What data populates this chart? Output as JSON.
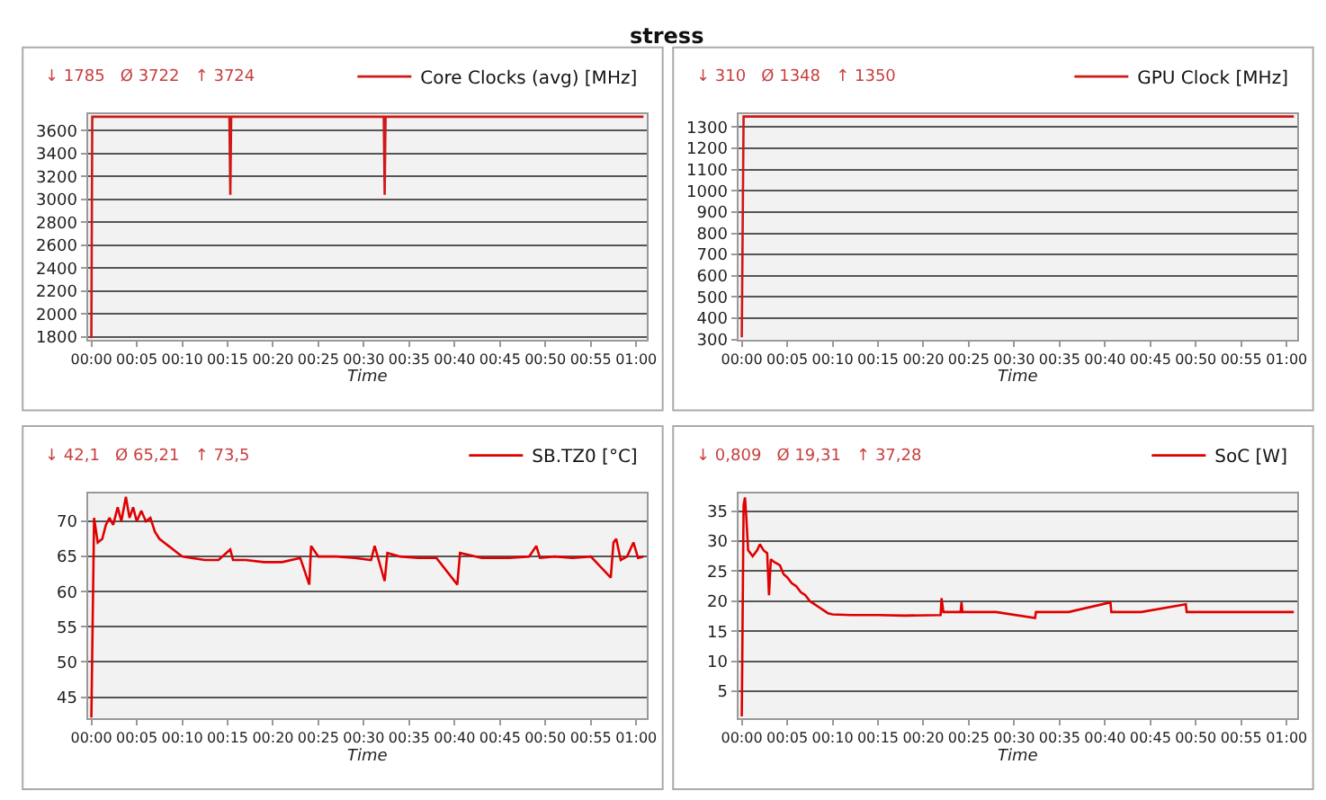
{
  "chart_data": [
    {
      "type": "line",
      "title": "stress",
      "xlabel": "Time",
      "legend": "top right",
      "grid": "y",
      "marker": "none",
      "line_style": "solid",
      "annotations": [
        "↓ 1785   Ø 3722   ↑ 3724"
      ],
      "xlim": [
        -0.4,
        61.2
      ],
      "ylim": [
        1780,
        3740
      ],
      "yticks": [
        1800,
        2000,
        2200,
        2400,
        2600,
        2800,
        3000,
        3200,
        3400,
        3600
      ],
      "xticks": [
        {
          "value": 0,
          "label": "00:00"
        },
        {
          "value": 5,
          "label": "00:05"
        },
        {
          "value": 10,
          "label": "00:10"
        },
        {
          "value": 15,
          "label": "00:15"
        },
        {
          "value": 20,
          "label": "00:20"
        },
        {
          "value": 25,
          "label": "00:25"
        },
        {
          "value": 30,
          "label": "00:30"
        },
        {
          "value": 35,
          "label": "00:35"
        },
        {
          "value": 40,
          "label": "00:40"
        },
        {
          "value": 45,
          "label": "00:45"
        },
        {
          "value": 50,
          "label": "00:50"
        },
        {
          "value": 55,
          "label": "00:55"
        },
        {
          "value": 60,
          "label": "01:00"
        }
      ],
      "series": [
        {
          "name": "Core Clocks (avg) [MHz]",
          "color": "#d01818",
          "x": [
            0,
            0.1,
            15.2,
            15.3,
            15.4,
            32.2,
            32.3,
            32.4,
            60.8
          ],
          "values": [
            1790,
            3720,
            3720,
            3040,
            3720,
            3720,
            3040,
            3720,
            3720
          ]
        }
      ]
    },
    {
      "type": "line",
      "xlabel": "Time",
      "legend": "top right",
      "grid": "y",
      "marker": "none",
      "line_style": "solid",
      "annotations": [
        "↓ 310   Ø 1348   ↑ 1350"
      ],
      "xlim": [
        -0.4,
        61.2
      ],
      "ylim": [
        300,
        1360
      ],
      "yticks": [
        300,
        400,
        500,
        600,
        700,
        800,
        900,
        1000,
        1100,
        1200,
        1300
      ],
      "xticks": [
        {
          "value": 0,
          "label": "00:00"
        },
        {
          "value": 5,
          "label": "00:05"
        },
        {
          "value": 10,
          "label": "00:10"
        },
        {
          "value": 15,
          "label": "00:15"
        },
        {
          "value": 20,
          "label": "00:20"
        },
        {
          "value": 25,
          "label": "00:25"
        },
        {
          "value": 30,
          "label": "00:30"
        },
        {
          "value": 35,
          "label": "00:35"
        },
        {
          "value": 40,
          "label": "00:40"
        },
        {
          "value": 45,
          "label": "00:45"
        },
        {
          "value": 50,
          "label": "00:50"
        },
        {
          "value": 55,
          "label": "00:55"
        },
        {
          "value": 60,
          "label": "01:00"
        }
      ],
      "series": [
        {
          "name": "GPU Clock [MHz]",
          "color": "#d01818",
          "x": [
            0,
            0.2,
            60.8
          ],
          "values": [
            310,
            1350,
            1350
          ]
        }
      ]
    },
    {
      "type": "line",
      "xlabel": "Time",
      "legend": "top right",
      "grid": "y",
      "marker": "none",
      "line_style": "solid",
      "annotations": [
        "↓ 42,1   Ø 65,21   ↑ 73,5"
      ],
      "xlim": [
        -0.4,
        61.2
      ],
      "ylim": [
        42,
        74
      ],
      "yticks": [
        45,
        50,
        55,
        60,
        65,
        70
      ],
      "xticks": [
        {
          "value": 0,
          "label": "00:00"
        },
        {
          "value": 5,
          "label": "00:05"
        },
        {
          "value": 10,
          "label": "00:10"
        },
        {
          "value": 15,
          "label": "00:15"
        },
        {
          "value": 20,
          "label": "00:20"
        },
        {
          "value": 25,
          "label": "00:25"
        },
        {
          "value": 30,
          "label": "00:30"
        },
        {
          "value": 35,
          "label": "00:35"
        },
        {
          "value": 40,
          "label": "00:40"
        },
        {
          "value": 45,
          "label": "00:45"
        },
        {
          "value": 50,
          "label": "00:50"
        },
        {
          "value": 55,
          "label": "00:55"
        },
        {
          "value": 60,
          "label": "01:00"
        }
      ],
      "series": [
        {
          "name": "SB.TZ0 [°C]",
          "color": "#e00000",
          "x": [
            0,
            0.3,
            0.7,
            1.2,
            1.6,
            2.0,
            2.4,
            2.9,
            3.3,
            3.8,
            4.2,
            4.6,
            5.0,
            5.5,
            6.0,
            6.5,
            7.0,
            7.5,
            8.0,
            8.5,
            9.0,
            9.5,
            10.0,
            11.0,
            12.5,
            14.0,
            15.3,
            15.6,
            17.0,
            19.0,
            21.0,
            23.0,
            24.0,
            24.2,
            25.0,
            27.0,
            29.0,
            30.8,
            31.2,
            32.3,
            32.6,
            34.0,
            36.0,
            38.0,
            40.3,
            40.6,
            43.0,
            46.0,
            48.2,
            49.0,
            49.4,
            51.0,
            53.0,
            55.0,
            57.2,
            57.5,
            57.8,
            58.3,
            59.0,
            59.7,
            60.2,
            60.8
          ],
          "values": [
            42.1,
            70.5,
            67.0,
            67.5,
            69.5,
            70.5,
            69.5,
            72.0,
            70.0,
            73.5,
            70.5,
            72.0,
            70.0,
            71.5,
            70.0,
            70.5,
            68.5,
            67.5,
            67.0,
            66.5,
            66.0,
            65.5,
            65.0,
            64.8,
            64.5,
            64.5,
            66.0,
            64.5,
            64.5,
            64.2,
            64.2,
            64.8,
            61.0,
            66.5,
            65.0,
            65.0,
            64.8,
            64.5,
            66.5,
            61.5,
            65.5,
            65.0,
            64.8,
            64.8,
            61.0,
            65.5,
            64.8,
            64.8,
            65.0,
            66.5,
            64.8,
            65.0,
            64.8,
            65.0,
            62.0,
            67.0,
            67.5,
            64.5,
            65.0,
            67.0,
            64.8,
            65.0
          ]
        }
      ]
    },
    {
      "type": "line",
      "xlabel": "Time",
      "legend": "top right",
      "grid": "y",
      "marker": "none",
      "line_style": "solid",
      "annotations": [
        "↓ 0,809   Ø 19,31   ↑ 37,28"
      ],
      "xlim": [
        -0.4,
        61.2
      ],
      "ylim": [
        0.5,
        38
      ],
      "yticks": [
        5,
        10,
        15,
        20,
        25,
        30,
        35
      ],
      "xticks": [
        {
          "value": 0,
          "label": "00:00"
        },
        {
          "value": 5,
          "label": "00:05"
        },
        {
          "value": 10,
          "label": "00:10"
        },
        {
          "value": 15,
          "label": "00:15"
        },
        {
          "value": 20,
          "label": "00:20"
        },
        {
          "value": 25,
          "label": "00:25"
        },
        {
          "value": 30,
          "label": "00:30"
        },
        {
          "value": 35,
          "label": "00:35"
        },
        {
          "value": 40,
          "label": "00:40"
        },
        {
          "value": 45,
          "label": "00:45"
        },
        {
          "value": 50,
          "label": "00:50"
        },
        {
          "value": 55,
          "label": "00:55"
        },
        {
          "value": 60,
          "label": "01:00"
        }
      ],
      "series": [
        {
          "name": "SoC [W]",
          "color": "#e00000",
          "x": [
            0,
            0.2,
            0.35,
            0.5,
            0.7,
            1.2,
            1.7,
            2.0,
            2.4,
            2.8,
            3.0,
            3.2,
            3.6,
            4.2,
            4.6,
            5.0,
            5.5,
            6.0,
            6.5,
            7.0,
            7.5,
            8.0,
            8.5,
            9.0,
            9.5,
            10.0,
            12.0,
            15.0,
            18.0,
            21.9,
            22.0,
            22.2,
            24.1,
            24.2,
            24.3,
            28.0,
            32.3,
            32.4,
            36.0,
            40.6,
            40.7,
            44.0,
            48.9,
            49.0,
            53.0,
            57.0,
            60.8
          ],
          "values": [
            0.8,
            36.0,
            37.3,
            34.0,
            28.5,
            27.5,
            28.5,
            29.5,
            28.5,
            28.0,
            21.0,
            27.0,
            26.5,
            26.0,
            24.5,
            24.0,
            23.0,
            22.5,
            21.5,
            21.0,
            20.0,
            19.5,
            19.0,
            18.5,
            18.0,
            17.8,
            17.7,
            17.7,
            17.6,
            17.7,
            20.5,
            18.2,
            18.2,
            19.8,
            18.2,
            18.2,
            17.2,
            18.2,
            18.2,
            19.8,
            18.2,
            18.2,
            19.5,
            18.2,
            18.2,
            18.2,
            18.2
          ]
        }
      ]
    }
  ]
}
